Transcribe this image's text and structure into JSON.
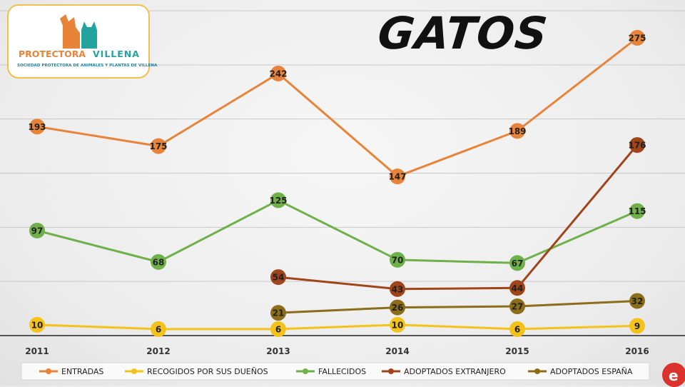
{
  "title": "GATOS",
  "logo": {
    "name_part1": "PROTECTORA",
    "name_part2": "VILLENA",
    "subtitle": "SOCIEDAD PROTECTORA DE ANIMALES Y PLANTAS DE VILLENA"
  },
  "corner_icon": "e-logo-icon",
  "chart_data": {
    "type": "line",
    "categories": [
      "2011",
      "2012",
      "2013",
      "2014",
      "2015",
      "2016"
    ],
    "ylim": [
      0,
      300
    ],
    "grid": true,
    "legend_position": "bottom",
    "series": [
      {
        "name": "ENTRADAS",
        "color": "#e8843a",
        "values": [
          193,
          175,
          242,
          147,
          189,
          275
        ]
      },
      {
        "name": "RECOGIDOS POR SUS DUEÑOS",
        "color": "#f4c21a",
        "values": [
          10,
          6,
          6,
          10,
          6,
          9
        ]
      },
      {
        "name": "FALLECIDOS",
        "color": "#6fb04a",
        "values": [
          97,
          68,
          125,
          70,
          67,
          115
        ]
      },
      {
        "name": "ADOPTADOS EXTRANJERO",
        "color": "#a0441a",
        "values": [
          null,
          null,
          54,
          43,
          44,
          176
        ]
      },
      {
        "name": "ADOPTADOS ESPAÑA",
        "color": "#8c6d1a",
        "values": [
          null,
          null,
          21,
          26,
          27,
          32
        ]
      }
    ]
  }
}
